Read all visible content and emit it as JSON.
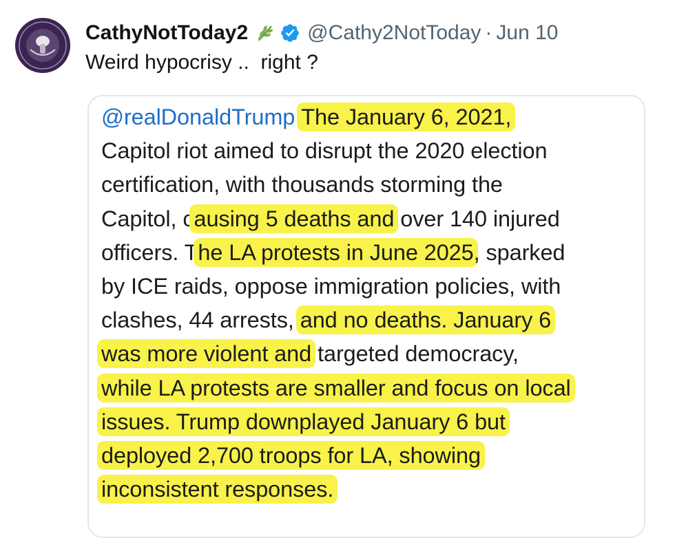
{
  "user": {
    "display_name": "CathyNotToday2",
    "handle": "@Cathy2NotToday",
    "separator": "·",
    "date": "Jun 10",
    "avatar_icon": "seal-avatar-icon",
    "leaf_icon": "olive-branch-icon",
    "verified_icon": "verified-badge-icon",
    "verified_color": "#1d9bf0"
  },
  "tweet": {
    "text": "Weird hypocrisy ..  right ?"
  },
  "quoted_post": {
    "highlight_color": "#f8f24a",
    "mention_color": "#1d6fc8",
    "segments": [
      "@realDonaldTrump",
      " ",
      "The January 6, 2021,",
      "Capitol riot aimed to disrupt the 2020 election",
      "certification, with thousands storming the",
      "Capitol, c",
      "ausing 5 deaths and",
      " over 140 injured",
      "officers. T",
      "he LA protests in June 2025",
      ", sparked",
      "by ICE raids, oppose immigration policies, with",
      "clashes, 44 arrests, ",
      "and no deaths. January 6",
      "was more violent and",
      " targeted democracy,",
      "while LA protests are smaller and focus on local",
      "issues. Trump downplayed January 6 but",
      "deployed 2,700 troops for LA, showing",
      "inconsistent responses."
    ]
  }
}
